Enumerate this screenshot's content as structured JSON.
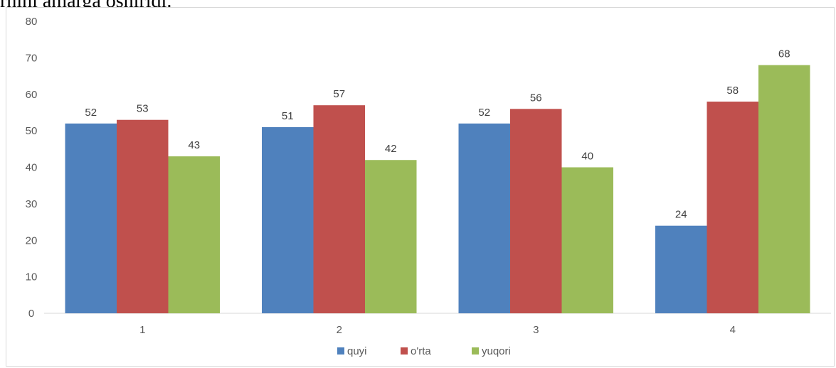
{
  "caption": "rnini amarga oshiridi.",
  "chart_data": {
    "type": "bar",
    "categories": [
      "1",
      "2",
      "3",
      "4"
    ],
    "series": [
      {
        "name": "quyi",
        "values": [
          52,
          51,
          52,
          24
        ],
        "color": "#4f81bd"
      },
      {
        "name": "o'rta",
        "values": [
          53,
          57,
          56,
          58
        ],
        "color": "#c0504d"
      },
      {
        "name": "yuqori",
        "values": [
          43,
          42,
          40,
          68
        ],
        "color": "#9bbb59"
      }
    ],
    "ylim": [
      0,
      80
    ],
    "yticks": [
      0,
      10,
      20,
      30,
      40,
      50,
      60,
      70,
      80
    ],
    "grid": false,
    "legend": "bottom",
    "title": "",
    "xlabel": "",
    "ylabel": ""
  }
}
